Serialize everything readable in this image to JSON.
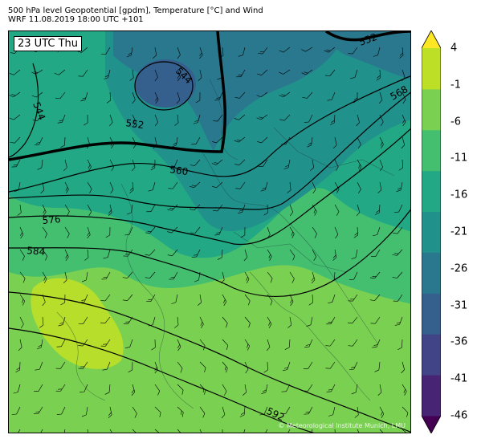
{
  "header": {
    "line1": "500 hPa level Geopotential [gpdm], Temperature [°C] and Wind",
    "line2": "WRF 11.08.2019 18:00 UTC +101"
  },
  "map": {
    "time_label": "23 UTC Thu",
    "copyright": "© Meteorological Institute Munich, LMU",
    "contour_labels": [
      "544",
      "544",
      "552",
      "552",
      "560",
      "568",
      "576",
      "584",
      "592"
    ]
  },
  "colorbar": {
    "tick_labels": [
      "4",
      "-1",
      "-6",
      "-11",
      "-16",
      "-21",
      "-26",
      "-31",
      "-36",
      "-41",
      "-46"
    ],
    "colors": [
      "#440154",
      "#482475",
      "#414487",
      "#355f8d",
      "#2a788e",
      "#21918c",
      "#22a884",
      "#44bf70",
      "#7ad151",
      "#bddf26",
      "#fde725"
    ]
  }
}
